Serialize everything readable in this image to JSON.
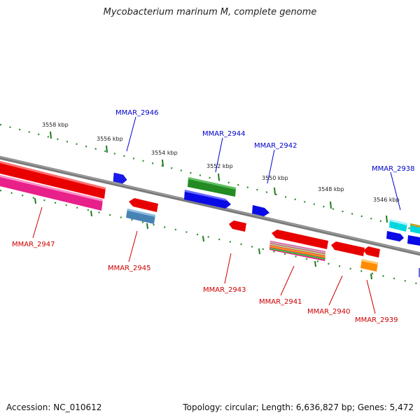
{
  "title": "Mycobacterium marinum M, complete genome",
  "footer": {
    "accession": "Accession: NC_010612",
    "topology": "Topology: circular; Length: 6,636,827 bp; Genes: 5,472"
  },
  "colors": {
    "backbone": "#808080",
    "tick": "#1f7a1f",
    "forward_label": "#0000cc",
    "reverse_label": "#cc0000"
  },
  "kbp_ticks": [
    "3558 kbp",
    "3556 kbp",
    "3554 kbp",
    "3552 kbp",
    "3550 kbp",
    "3548 kbp",
    "3546 kbp"
  ],
  "gene_labels": {
    "forward": [
      "MMAR_2946",
      "MMAR_2944",
      "MMAR_2942",
      "MMAR_2938"
    ],
    "reverse": [
      "MMAR_2947",
      "MMAR_2945",
      "MMAR_2943",
      "MMAR_2941",
      "MMAR_2940",
      "MMAR_2939"
    ]
  }
}
